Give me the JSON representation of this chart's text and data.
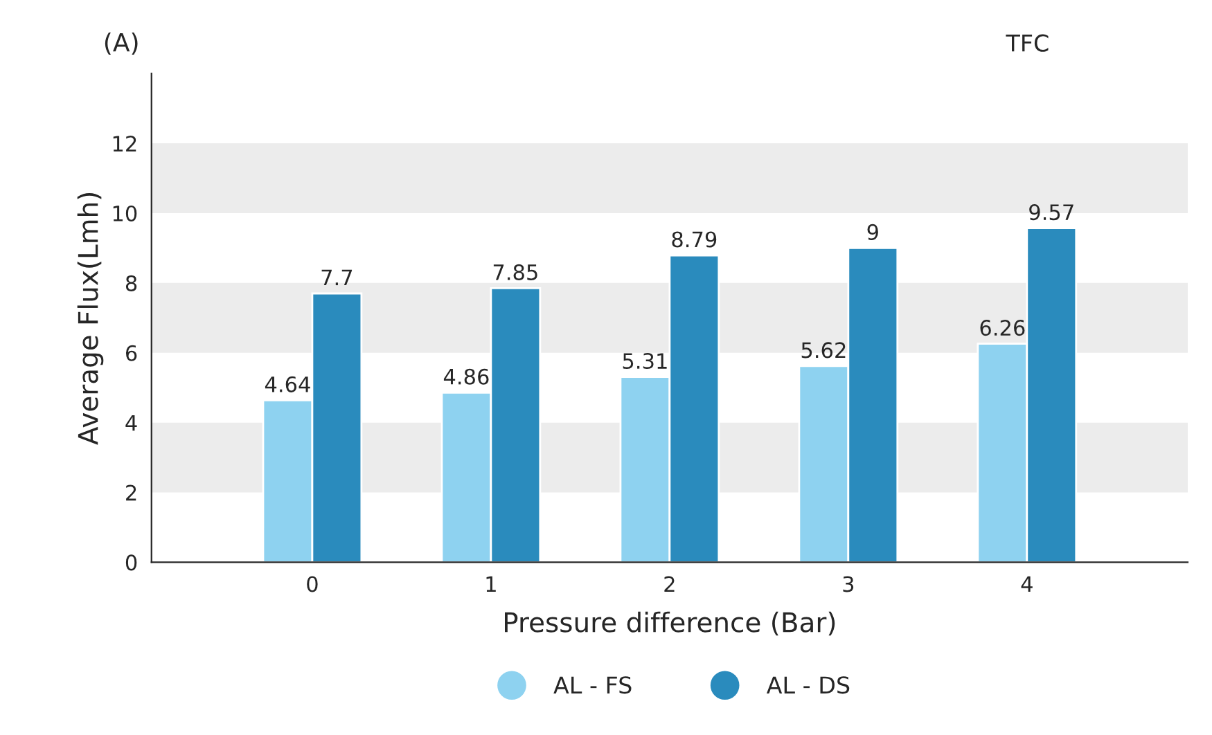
{
  "chart_data": {
    "type": "bar",
    "title": "(A)",
    "xlabel": "Pressure difference (Bar)",
    "ylabel": "Average Flux(Lmh)",
    "annotations": [
      "TFC"
    ],
    "categories": [
      "0",
      "1",
      "2",
      "3",
      "4"
    ],
    "series": [
      {
        "name": "AL - FS",
        "color": "#8ed2f0",
        "values": [
          4.64,
          4.86,
          5.31,
          5.62,
          6.26
        ]
      },
      {
        "name": "AL - DS",
        "color": "#2a8bbd",
        "values": [
          7.7,
          7.85,
          8.79,
          9,
          9.57
        ]
      }
    ],
    "ylim": [
      0,
      14
    ],
    "yticks": [
      0,
      2,
      4,
      6,
      8,
      10,
      12
    ],
    "bands": [
      {
        "axis": "y",
        "from": 2,
        "to": 4,
        "color": "#ececec"
      },
      {
        "axis": "y",
        "from": 6,
        "to": 8,
        "color": "#ececec"
      },
      {
        "axis": "y",
        "from": 10,
        "to": 12,
        "color": "#ececec"
      }
    ],
    "data_labels": true,
    "legend": "bottom",
    "grid": false
  }
}
